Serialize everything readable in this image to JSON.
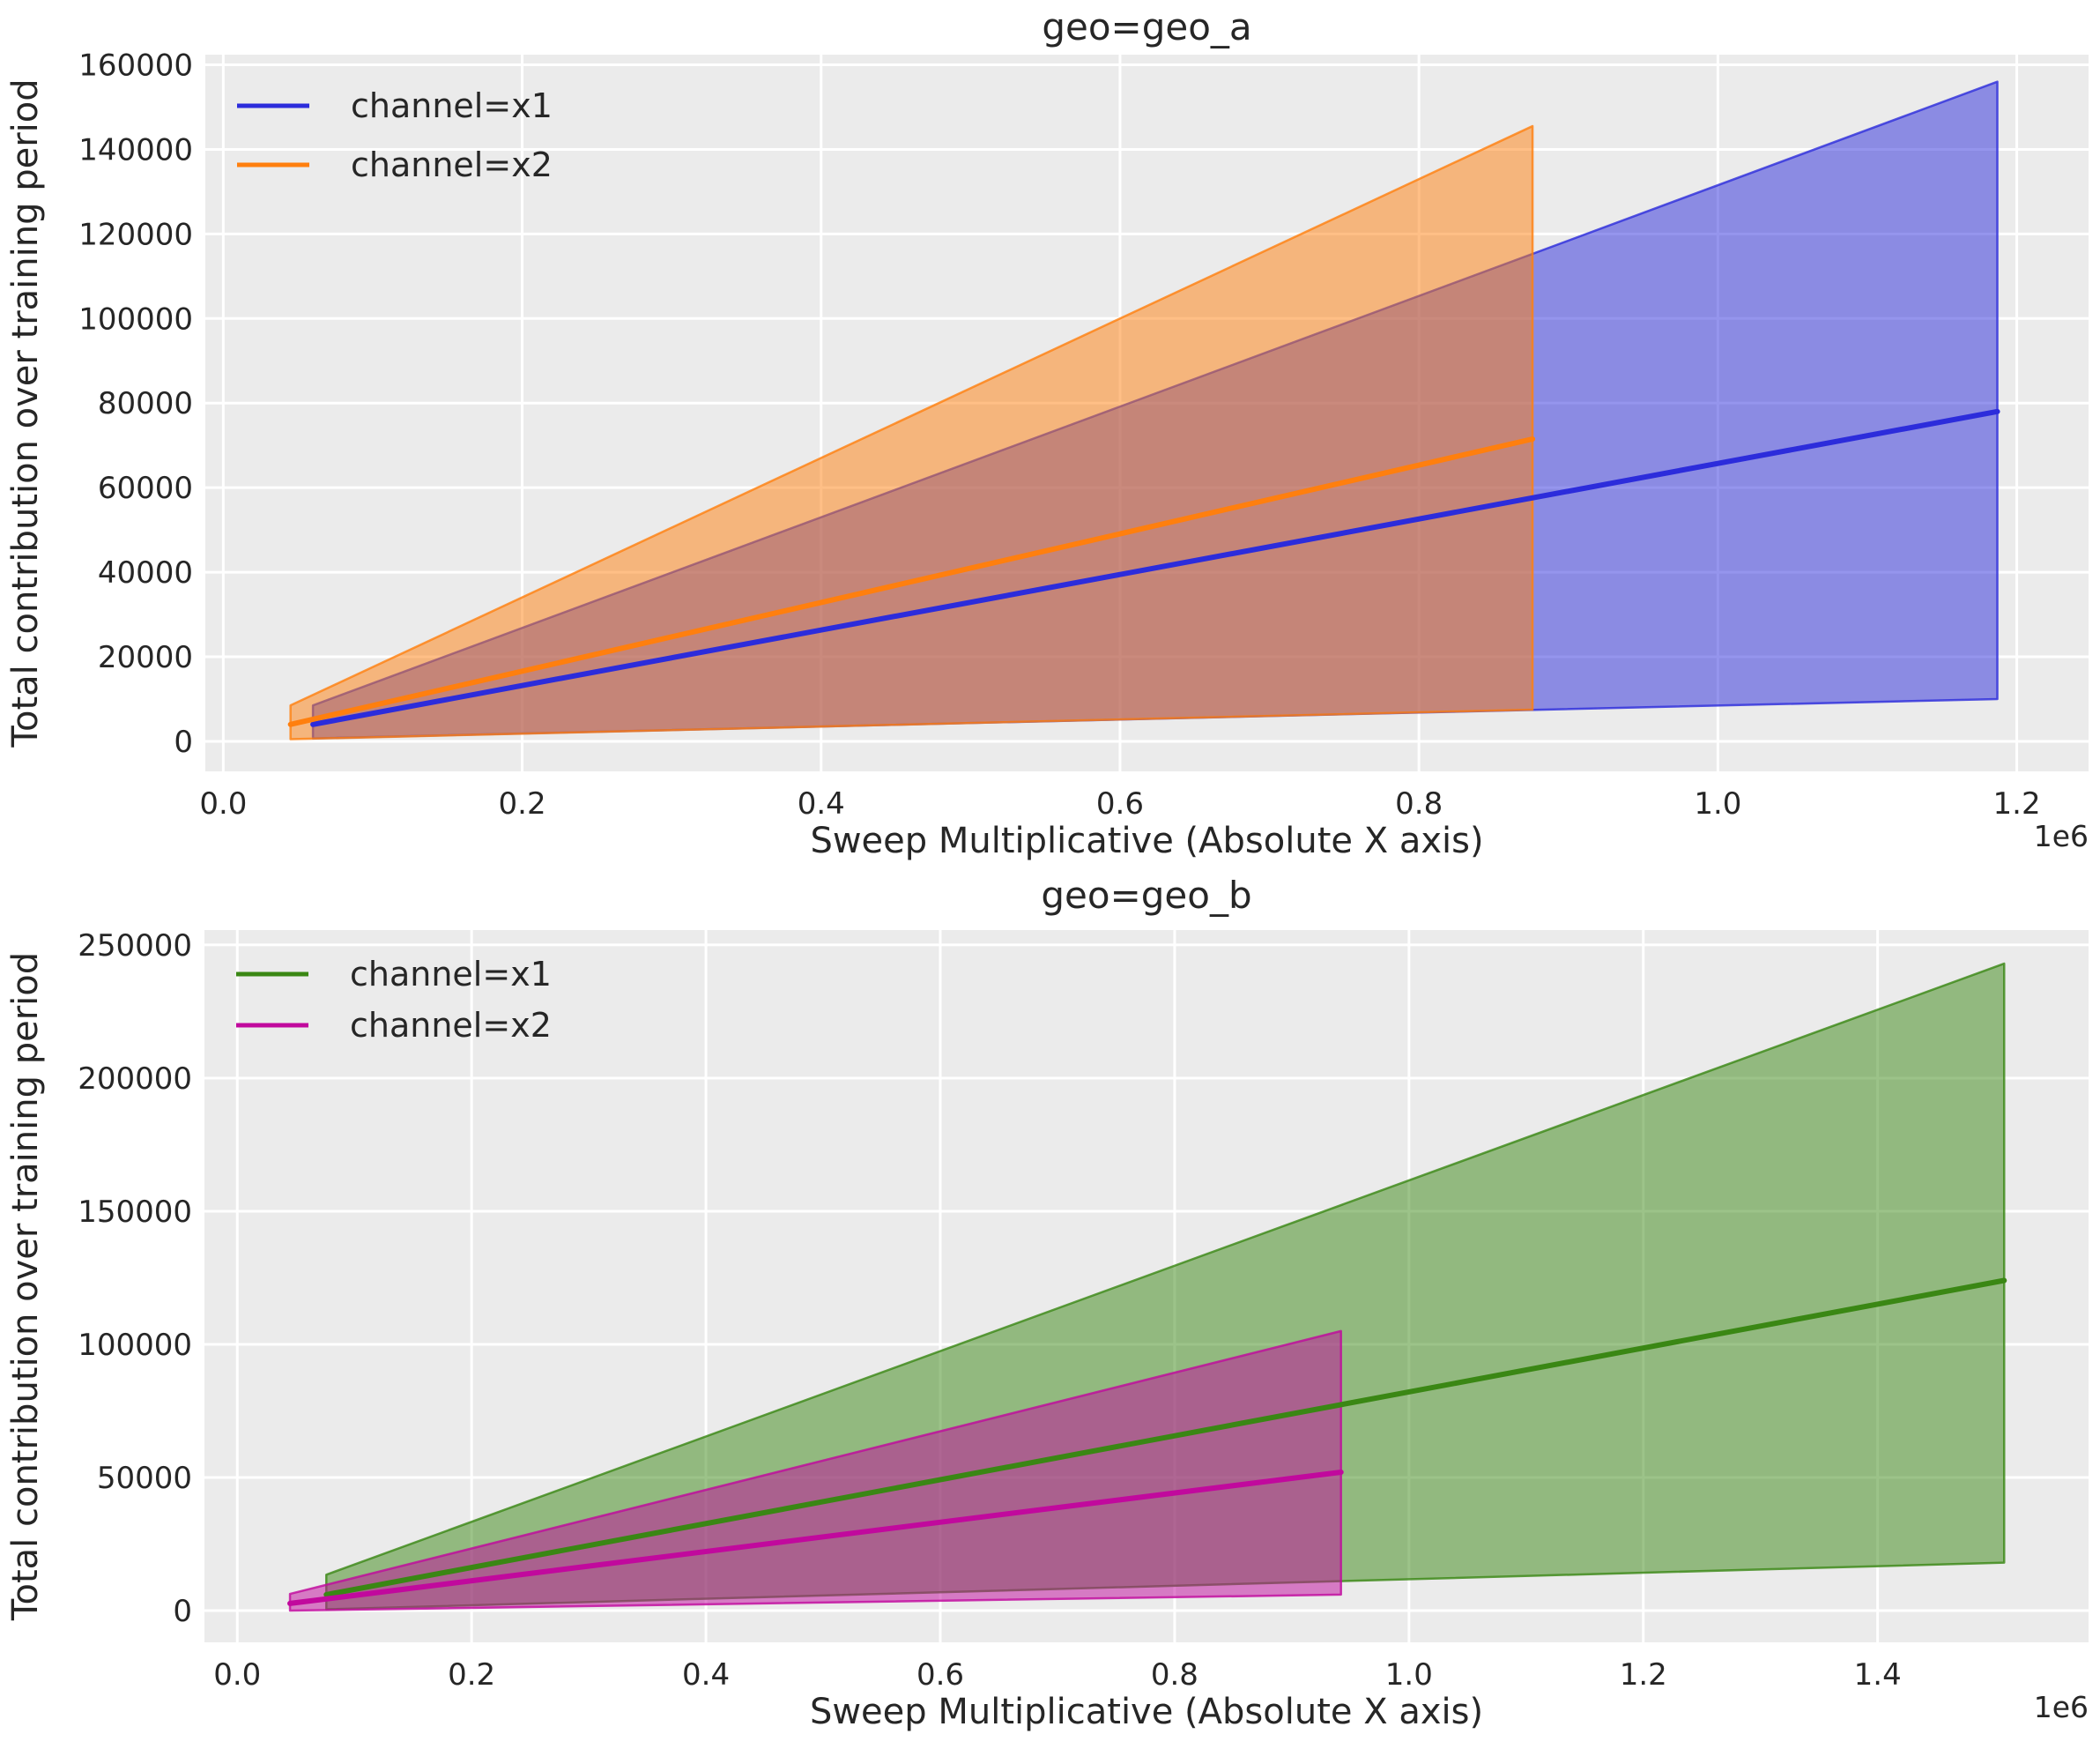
{
  "figure": {
    "background_color": "#ffffff",
    "plot_background_color": "#ebebeb",
    "grid_color": "#ffffff",
    "text_color": "#262626"
  },
  "chart_data": [
    {
      "type": "line",
      "title": "geo=geo_a",
      "xlabel": "Sweep Multiplicative (Absolute X axis)",
      "ylabel": "Total contribution over training period",
      "x_offset_label": "1e6",
      "grid": true,
      "legend_position": "upper left",
      "xlim": [
        -12000,
        1248000
      ],
      "ylim": [
        -7100,
        162400
      ],
      "x_ticks": [
        0,
        200000,
        400000,
        600000,
        800000,
        1000000,
        1200000
      ],
      "x_tick_labels": [
        "0.0",
        "0.2",
        "0.4",
        "0.6",
        "0.8",
        "1.0",
        "1.2"
      ],
      "y_ticks": [
        0,
        20000,
        40000,
        60000,
        80000,
        100000,
        120000,
        140000,
        160000
      ],
      "y_tick_labels": [
        "0",
        "20000",
        "40000",
        "60000",
        "80000",
        "100000",
        "120000",
        "140000",
        "160000"
      ],
      "series": [
        {
          "name": "channel=x1",
          "color": "#2c2cdb",
          "x": [
            60000,
            1187000
          ],
          "line": [
            4000,
            78000
          ],
          "upper": [
            8500,
            156000
          ],
          "lower": [
            700,
            10000
          ]
        },
        {
          "name": "channel=x2",
          "color": "#ff7f0e",
          "x": [
            45000,
            876000
          ],
          "line": [
            4000,
            71500
          ],
          "upper": [
            8500,
            145500
          ],
          "lower": [
            500,
            7500
          ]
        }
      ]
    },
    {
      "type": "line",
      "title": "geo=geo_b",
      "xlabel": "Sweep Multiplicative (Absolute X axis)",
      "ylabel": "Total contribution over training period",
      "x_offset_label": "1e6",
      "grid": true,
      "legend_position": "upper left",
      "xlim": [
        -28000,
        1580000
      ],
      "ylim": [
        -11900,
        255600
      ],
      "x_ticks": [
        0,
        200000,
        400000,
        600000,
        800000,
        1000000,
        1200000,
        1400000
      ],
      "x_tick_labels": [
        "0.0",
        "0.2",
        "0.4",
        "0.6",
        "0.8",
        "1.0",
        "1.2",
        "1.4"
      ],
      "y_ticks": [
        0,
        50000,
        100000,
        150000,
        200000,
        250000
      ],
      "y_tick_labels": [
        "0",
        "50000",
        "100000",
        "150000",
        "200000",
        "250000"
      ],
      "series": [
        {
          "name": "channel=x1",
          "color": "#3a8714",
          "x": [
            76000,
            1508000
          ],
          "line": [
            6000,
            124000
          ],
          "upper": [
            13500,
            243000
          ],
          "lower": [
            500,
            18000
          ]
        },
        {
          "name": "channel=x2",
          "color": "#c1099d",
          "x": [
            45000,
            942000
          ],
          "line": [
            2700,
            52000
          ],
          "upper": [
            6300,
            105000
          ],
          "lower": [
            0,
            6000
          ]
        }
      ]
    }
  ]
}
